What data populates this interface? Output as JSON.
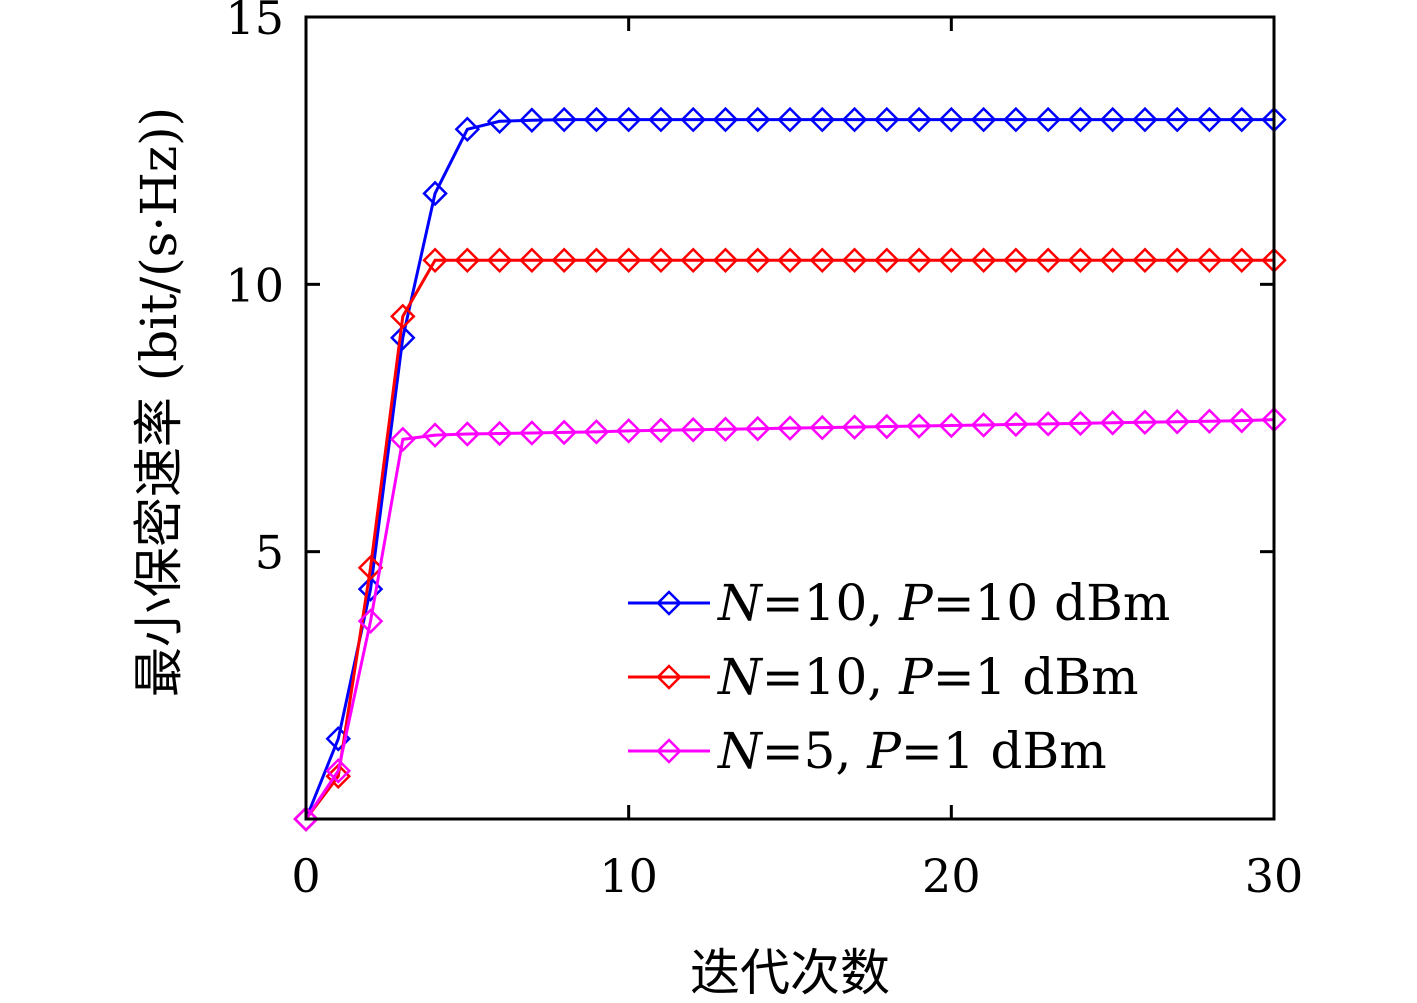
{
  "chart_data": {
    "type": "line",
    "title": "",
    "xlabel": "迭代次数",
    "ylabel": "最小保密速率 (bit/(s·Hz))",
    "xlim": [
      0,
      30
    ],
    "ylim": [
      0,
      15
    ],
    "xticks": [
      0,
      10,
      20,
      30
    ],
    "yticks": [
      5,
      10,
      15
    ],
    "grid": false,
    "legend_position": "lower-right",
    "x": [
      0,
      1,
      2,
      3,
      4,
      5,
      6,
      7,
      8,
      9,
      10,
      11,
      12,
      13,
      14,
      15,
      16,
      17,
      18,
      19,
      20,
      21,
      22,
      23,
      24,
      25,
      26,
      27,
      28,
      29,
      30
    ],
    "series": [
      {
        "name": "N=10, P=10 dBm",
        "color": "#0000ff",
        "marker": "diamond",
        "values": [
          0,
          1.5,
          4.3,
          9.0,
          11.7,
          12.9,
          13.05,
          13.07,
          13.08,
          13.08,
          13.08,
          13.08,
          13.08,
          13.08,
          13.08,
          13.08,
          13.08,
          13.08,
          13.08,
          13.08,
          13.08,
          13.08,
          13.08,
          13.08,
          13.08,
          13.08,
          13.08,
          13.08,
          13.08,
          13.08,
          13.08
        ]
      },
      {
        "name": "N=10, P=1 dBm",
        "color": "#ff0000",
        "marker": "diamond",
        "values": [
          0,
          0.8,
          4.7,
          9.4,
          10.45,
          10.45,
          10.45,
          10.45,
          10.45,
          10.45,
          10.45,
          10.45,
          10.45,
          10.45,
          10.45,
          10.45,
          10.45,
          10.45,
          10.45,
          10.45,
          10.45,
          10.45,
          10.45,
          10.45,
          10.45,
          10.45,
          10.45,
          10.45,
          10.45,
          10.45,
          10.45
        ]
      },
      {
        "name": "N=5, P=1 dBm",
        "color": "#ff00ff",
        "marker": "diamond",
        "values": [
          0,
          0.9,
          3.7,
          7.1,
          7.18,
          7.2,
          7.21,
          7.22,
          7.23,
          7.24,
          7.26,
          7.27,
          7.28,
          7.29,
          7.3,
          7.31,
          7.32,
          7.33,
          7.34,
          7.35,
          7.36,
          7.37,
          7.38,
          7.39,
          7.4,
          7.41,
          7.42,
          7.43,
          7.44,
          7.45,
          7.47
        ]
      }
    ],
    "legend_labels": [
      {
        "n_sym": "N",
        "n_val": "=10, ",
        "p_sym": "P",
        "p_val": "=10 dBm"
      },
      {
        "n_sym": "N",
        "n_val": "=10, ",
        "p_sym": "P",
        "p_val": "=1 dBm"
      },
      {
        "n_sym": "N",
        "n_val": "=5, ",
        "p_sym": "P",
        "p_val": "=1 dBm"
      }
    ]
  }
}
